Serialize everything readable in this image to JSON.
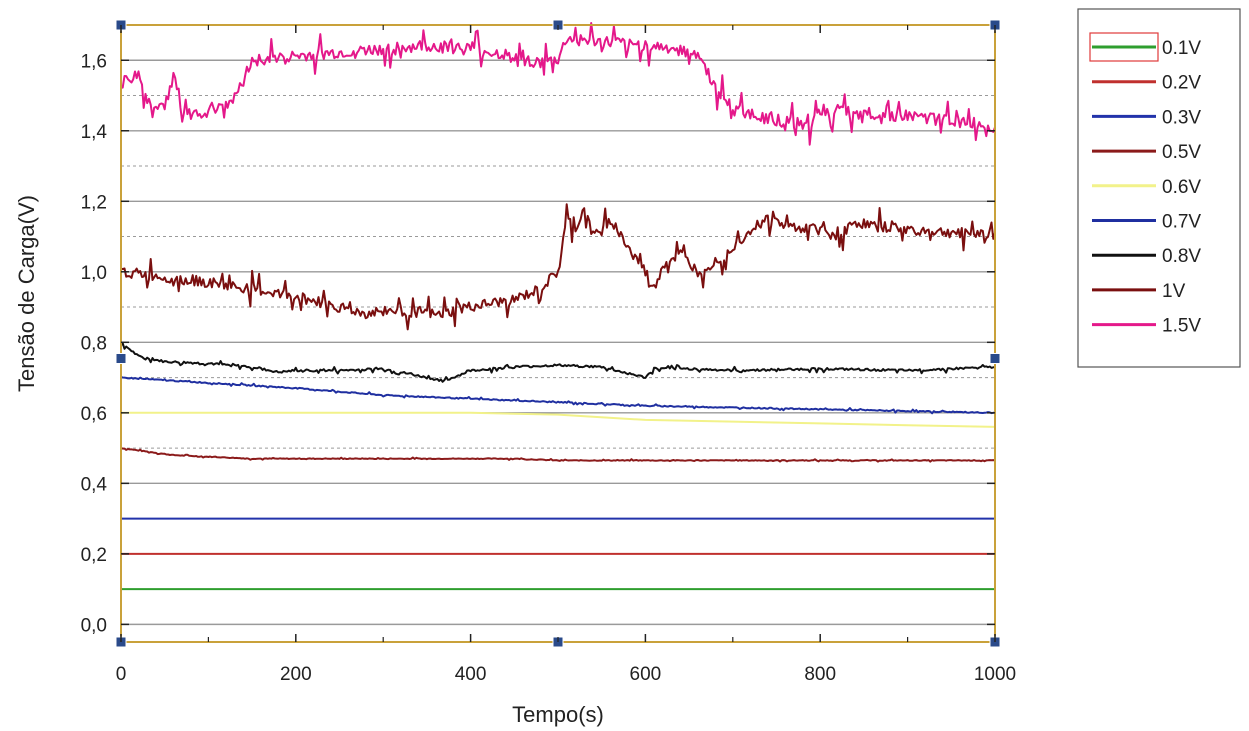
{
  "chart_data": {
    "type": "line",
    "title": "",
    "xlabel": "Tempo(s)",
    "ylabel": "Tensão de Carga(V)",
    "xlim": [
      0,
      1000
    ],
    "ylim": [
      -0.05,
      1.7
    ],
    "x_ticks": [
      "0",
      "200",
      "400",
      "600",
      "800",
      "1000"
    ],
    "x_tick_values": [
      0,
      200,
      400,
      600,
      800,
      1000
    ],
    "y_ticks": [
      "0,0",
      "0,2",
      "0,4",
      "0,6",
      "0,8",
      "1,0",
      "1,2",
      "1,4",
      "1,6"
    ],
    "y_tick_values": [
      0.0,
      0.2,
      0.4,
      0.6,
      0.8,
      1.0,
      1.2,
      1.4,
      1.6
    ],
    "major_grid_y": [
      0.0,
      0.2,
      0.4,
      0.6,
      0.8,
      1.0,
      1.2,
      1.4,
      1.6
    ],
    "minor_grid_y": [
      0.5,
      0.7,
      0.9,
      1.1,
      1.3,
      1.5
    ],
    "grid": true,
    "legend_position": "right",
    "series": [
      {
        "name": "0.1V",
        "color": "#2e9e2e",
        "x": [
          0,
          1000
        ],
        "y": [
          0.1,
          0.1
        ]
      },
      {
        "name": "0.2V",
        "color": "#c0302e",
        "x": [
          0,
          1000
        ],
        "y": [
          0.2,
          0.2
        ]
      },
      {
        "name": "0.3V",
        "color": "#2233aa",
        "x": [
          0,
          1000
        ],
        "y": [
          0.3,
          0.3
        ]
      },
      {
        "name": "0.5V",
        "color": "#8b1a1a",
        "x": [
          0,
          60,
          150,
          300,
          450,
          500,
          600,
          800,
          1000
        ],
        "y": [
          0.5,
          0.48,
          0.47,
          0.47,
          0.47,
          0.465,
          0.465,
          0.465,
          0.465
        ]
      },
      {
        "name": "0.6V",
        "color": "#f2f28a",
        "x": [
          0,
          200,
          400,
          500,
          600,
          700,
          800,
          900,
          1000
        ],
        "y": [
          0.6,
          0.6,
          0.6,
          0.595,
          0.58,
          0.575,
          0.57,
          0.565,
          0.56
        ]
      },
      {
        "name": "0.7V",
        "color": "#1f2fa0",
        "x": [
          0,
          100,
          200,
          300,
          400,
          500,
          600,
          700,
          800,
          900,
          1000
        ],
        "y": [
          0.7,
          0.685,
          0.67,
          0.65,
          0.64,
          0.63,
          0.62,
          0.615,
          0.61,
          0.605,
          0.6
        ]
      },
      {
        "name": "0.8V",
        "color": "#111111",
        "x": [
          0,
          20,
          50,
          100,
          150,
          180,
          200,
          250,
          300,
          350,
          370,
          400,
          450,
          500,
          550,
          600,
          610,
          650,
          700,
          800,
          900,
          1000
        ],
        "y": [
          0.8,
          0.76,
          0.745,
          0.74,
          0.73,
          0.715,
          0.72,
          0.72,
          0.725,
          0.7,
          0.69,
          0.72,
          0.73,
          0.735,
          0.73,
          0.7,
          0.725,
          0.725,
          0.72,
          0.725,
          0.72,
          0.73
        ]
      },
      {
        "name": "1V",
        "color": "#7a0f0f",
        "x": [
          0,
          50,
          100,
          150,
          200,
          250,
          280,
          300,
          350,
          360,
          400,
          450,
          480,
          500,
          510,
          520,
          530,
          540,
          560,
          580,
          600,
          610,
          620,
          640,
          660,
          680,
          700,
          720,
          740,
          760,
          800,
          820,
          840,
          860,
          900,
          950,
          1000
        ],
        "y": [
          1.0,
          0.985,
          0.97,
          0.95,
          0.93,
          0.9,
          0.88,
          0.89,
          0.885,
          0.875,
          0.9,
          0.92,
          0.95,
          1.0,
          1.15,
          1.12,
          1.18,
          1.1,
          1.15,
          1.07,
          1.0,
          0.95,
          1.02,
          1.05,
          1.0,
          1.03,
          1.07,
          1.12,
          1.15,
          1.13,
          1.12,
          1.1,
          1.14,
          1.13,
          1.12,
          1.11,
          1.11
        ]
      },
      {
        "name": "1.5V",
        "color": "#e4188a",
        "x": [
          0,
          20,
          30,
          50,
          60,
          70,
          90,
          110,
          130,
          150,
          200,
          250,
          300,
          350,
          400,
          450,
          480,
          500,
          510,
          550,
          600,
          640,
          660,
          680,
          700,
          750,
          790,
          795,
          800,
          850,
          900,
          950,
          1000
        ],
        "y": [
          1.53,
          1.56,
          1.48,
          1.47,
          1.56,
          1.44,
          1.45,
          1.47,
          1.49,
          1.6,
          1.61,
          1.62,
          1.63,
          1.64,
          1.63,
          1.61,
          1.59,
          1.6,
          1.66,
          1.65,
          1.64,
          1.63,
          1.62,
          1.52,
          1.46,
          1.43,
          1.42,
          1.47,
          1.46,
          1.45,
          1.44,
          1.43,
          1.41
        ]
      }
    ]
  }
}
